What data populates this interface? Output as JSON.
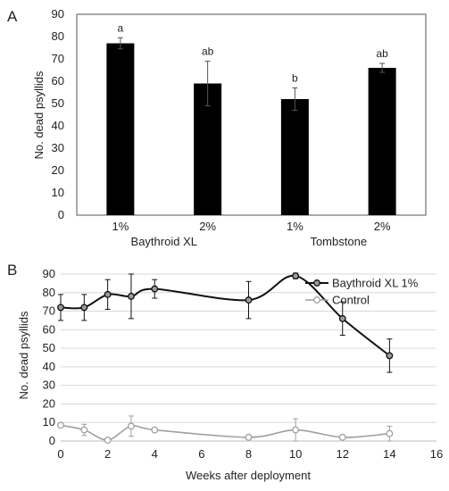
{
  "chart_data": [
    {
      "panel_label": "A",
      "type": "bar",
      "categories": [
        "1%",
        "2%",
        "1%",
        "2%"
      ],
      "groups": [
        {
          "name": "Baythroid XL",
          "categories": [
            0,
            1
          ]
        },
        {
          "name": "Tombstone",
          "categories": [
            2,
            3
          ]
        }
      ],
      "values": [
        77,
        59,
        52,
        66
      ],
      "errors": [
        2.5,
        10,
        5,
        2
      ],
      "annotations": [
        "a",
        "ab",
        "b",
        "ab"
      ],
      "title": "",
      "xlabel": "",
      "ylabel": "No. dead psyllids",
      "ylim": [
        0,
        90
      ],
      "yticks": [
        "0",
        "10",
        "20",
        "30",
        "40",
        "50",
        "60",
        "70",
        "80",
        "90"
      ],
      "grid": false,
      "bar_color": "#000000"
    },
    {
      "panel_label": "B",
      "type": "line",
      "title": "",
      "xlabel": "Weeks after deployment",
      "ylabel": "No. dead  psyllids",
      "xlim": [
        0,
        16
      ],
      "ylim": [
        0,
        90
      ],
      "xticks": [
        "0",
        "2",
        "4",
        "6",
        "8",
        "10",
        "12",
        "14",
        "16"
      ],
      "yticks": [
        "0",
        "10",
        "20",
        "30",
        "40",
        "50",
        "60",
        "70",
        "80",
        "90"
      ],
      "grid": true,
      "legend_position": "top-right",
      "series": [
        {
          "name": "Baythroid XL 1%",
          "color": "#111111",
          "marker_fill": "#9a9a9a",
          "x": [
            0,
            1,
            2,
            3,
            4,
            8,
            10,
            12,
            14
          ],
          "y": [
            72,
            72,
            79,
            78,
            82,
            76,
            89,
            66,
            46
          ],
          "err": [
            7,
            7,
            8,
            12,
            5,
            10,
            1.5,
            9,
            9
          ]
        },
        {
          "name": "Control",
          "color": "#a0a0a0",
          "marker_fill": "#ffffff",
          "x": [
            0,
            1,
            2,
            3,
            4,
            8,
            10,
            12,
            14
          ],
          "y": [
            8.5,
            6,
            0.5,
            8,
            6,
            2,
            6,
            2,
            4
          ],
          "err": [
            0,
            3,
            0,
            5.5,
            0,
            0,
            6,
            0,
            4
          ]
        }
      ]
    }
  ]
}
